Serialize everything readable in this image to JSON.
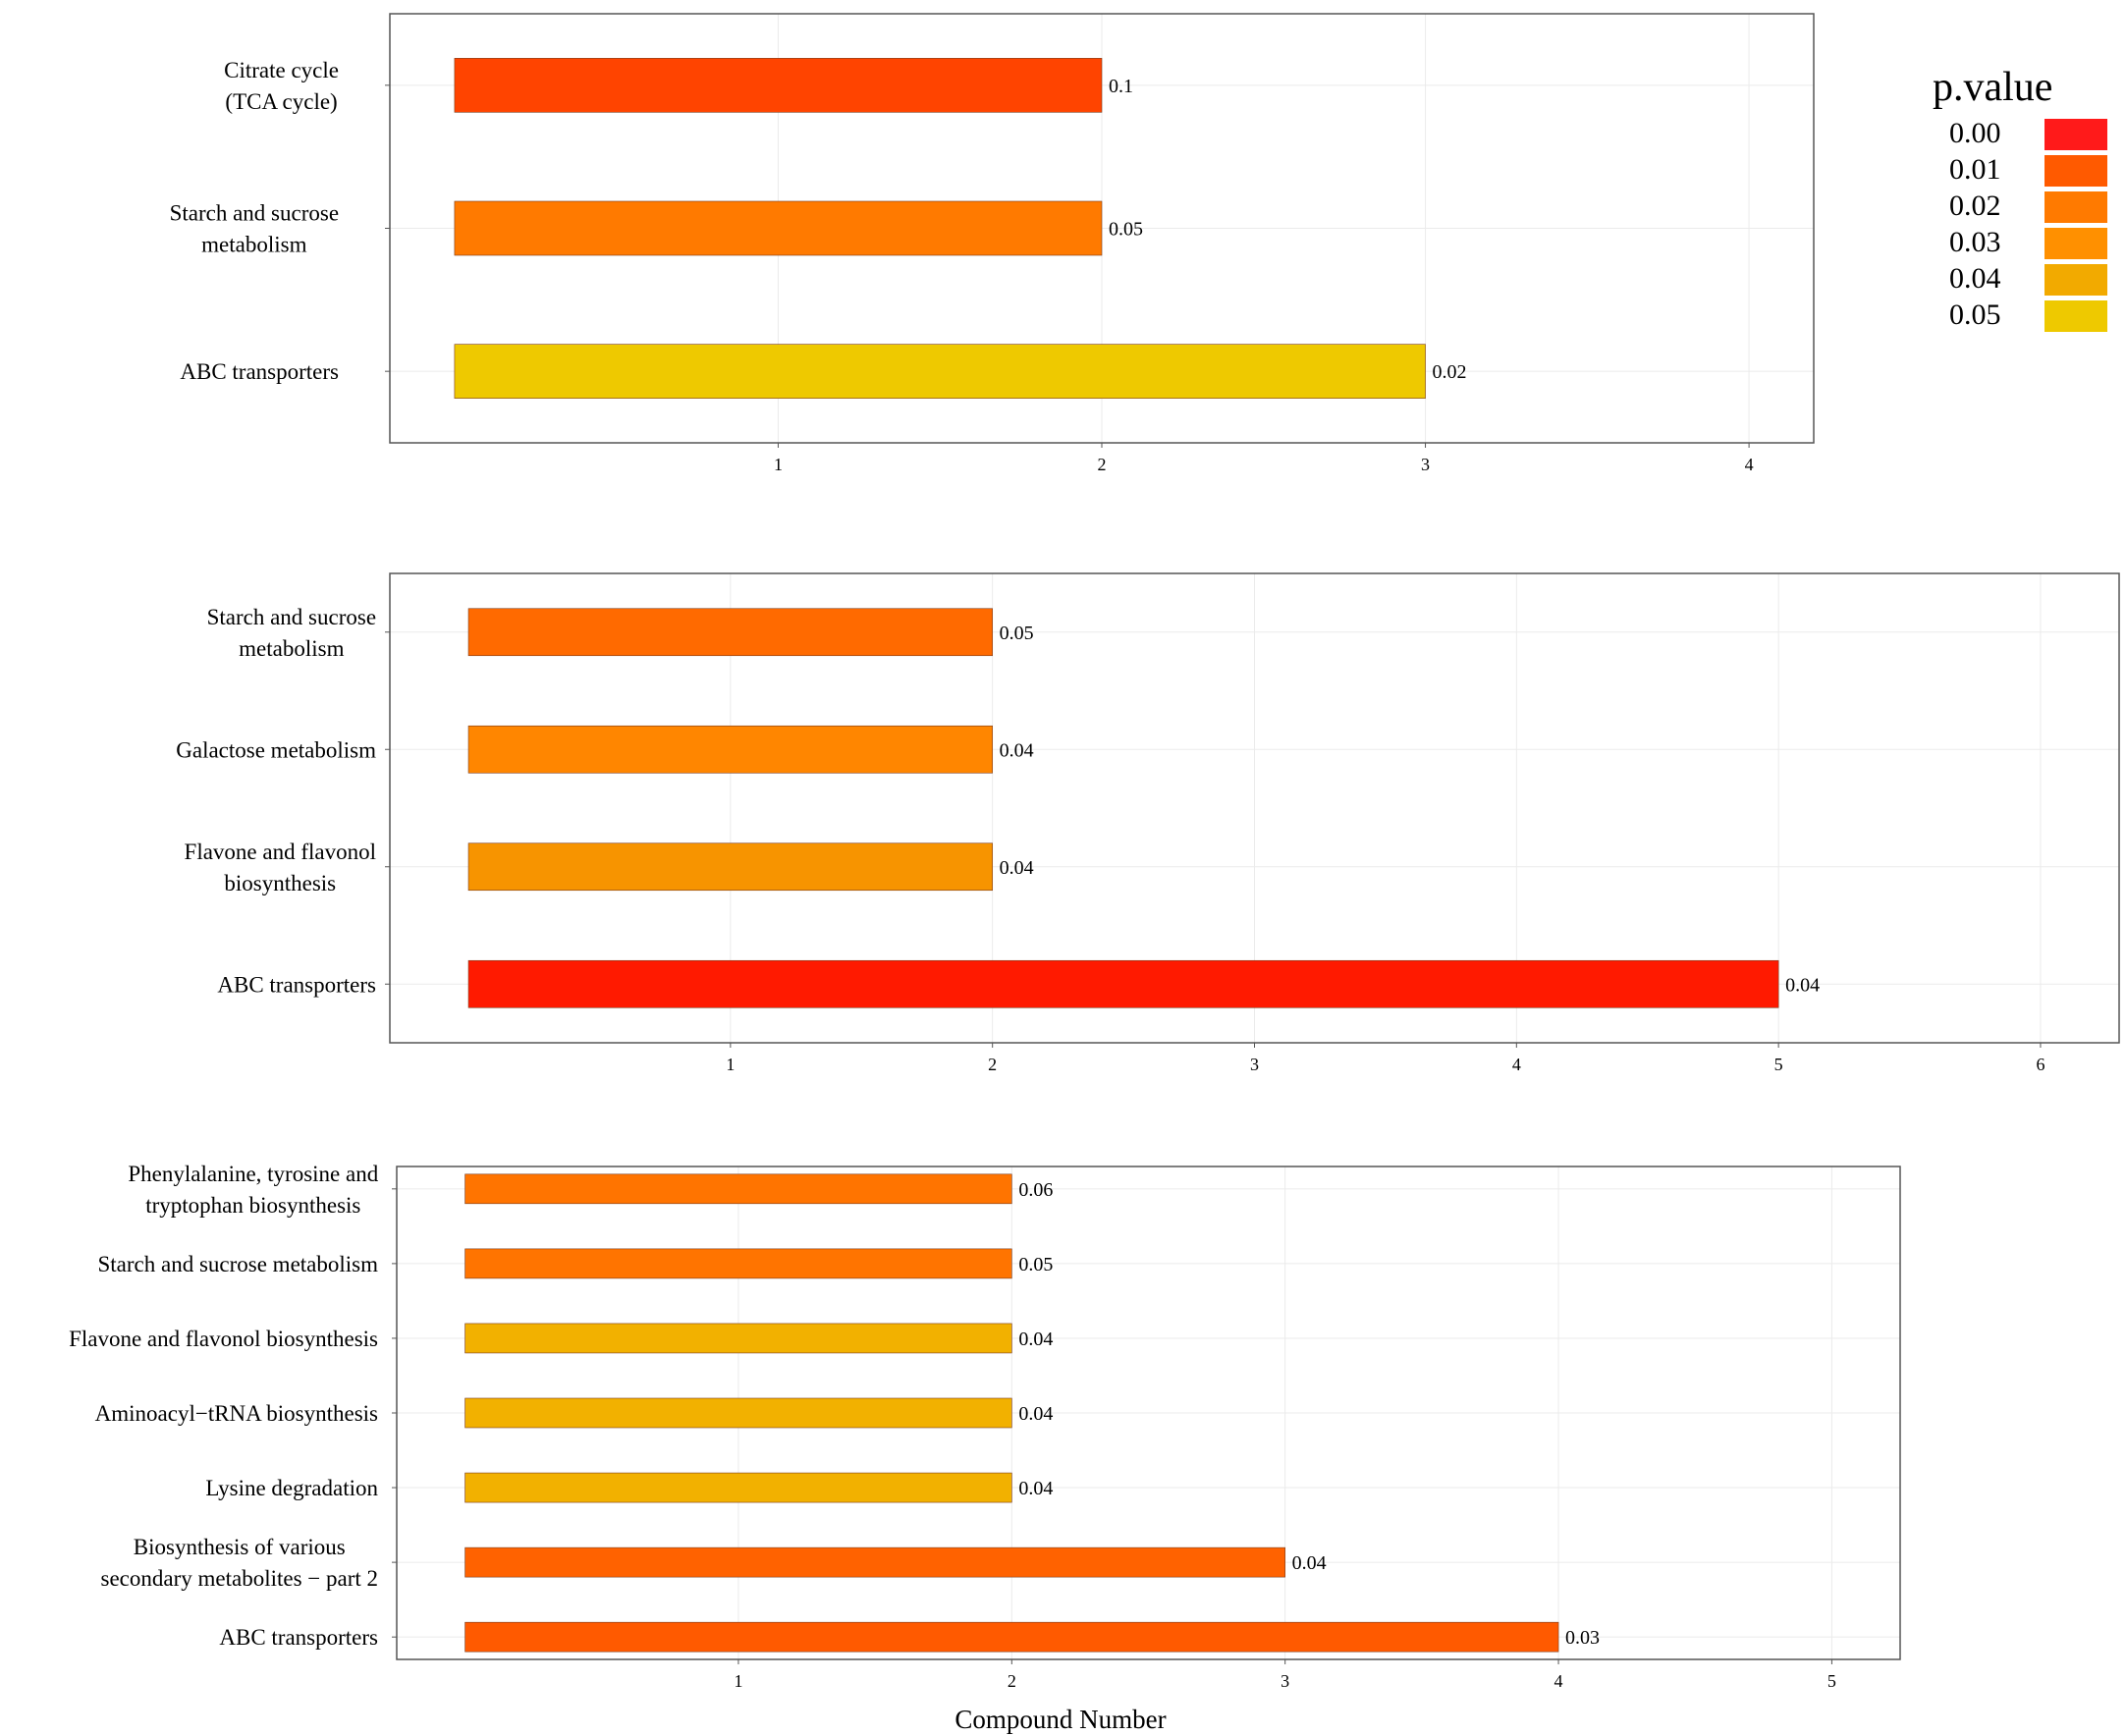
{
  "chart_data": [
    {
      "type": "bar",
      "orientation": "horizontal",
      "categories": [
        "Citrate cycle\n(TCA cycle)",
        "Starch and sucrose\nmetabolism",
        "ABC transporters"
      ],
      "values": [
        2,
        2,
        3
      ],
      "bar_labels": [
        "0.1",
        "0.05",
        "0.02"
      ],
      "bar_colors": [
        "#FF4400",
        "#FF7A00",
        "#EEC900"
      ],
      "xticks": [
        1,
        2,
        3,
        4
      ],
      "xlim": [
        -0.2,
        4.2
      ]
    },
    {
      "type": "bar",
      "orientation": "horizontal",
      "categories": [
        "Starch and sucrose\nmetabolism",
        "Galactose metabolism",
        "Flavone and flavonol\nbiosynthesis",
        "ABC transporters"
      ],
      "values": [
        2,
        2,
        2,
        5
      ],
      "bar_labels": [
        "0.05",
        "0.04",
        "0.04",
        "0.04"
      ],
      "bar_colors": [
        "#FF6A00",
        "#FF8600",
        "#F79400",
        "#FF1A00"
      ],
      "xticks": [
        1,
        2,
        3,
        4,
        5,
        6
      ],
      "xlim": [
        -0.3,
        6.3
      ]
    },
    {
      "type": "bar",
      "orientation": "horizontal",
      "categories": [
        "Phenylalanine, tyrosine and\ntryptophan biosynthesis",
        "Starch and sucrose metabolism",
        "Flavone and flavonol biosynthesis",
        "Aminoacyl−tRNA biosynthesis",
        "Lysine degradation",
        "Biosynthesis of various\nsecondary metabolites − part 2",
        "ABC transporters"
      ],
      "values": [
        2,
        2,
        2,
        2,
        2,
        3,
        4
      ],
      "bar_labels": [
        "0.06",
        "0.05",
        "0.04",
        "0.04",
        "0.04",
        "0.04",
        "0.03"
      ],
      "bar_colors": [
        "#FF7400",
        "#FF7400",
        "#F2B100",
        "#F2B100",
        "#F2B100",
        "#FF6200",
        "#FF5A00"
      ],
      "xticks": [
        1,
        2,
        3,
        4,
        5
      ],
      "xlim": [
        -0.25,
        5.25
      ]
    }
  ],
  "x_axis_title": "Compound Number",
  "legend": {
    "title": "p.value",
    "entries": [
      {
        "label": "0.00",
        "color": "#FF1A1A"
      },
      {
        "label": "0.01",
        "color": "#FF5A00"
      },
      {
        "label": "0.02",
        "color": "#FF7A00"
      },
      {
        "label": "0.03",
        "color": "#FF9000"
      },
      {
        "label": "0.04",
        "color": "#F2AA00"
      },
      {
        "label": "0.05",
        "color": "#EEC900"
      }
    ]
  }
}
